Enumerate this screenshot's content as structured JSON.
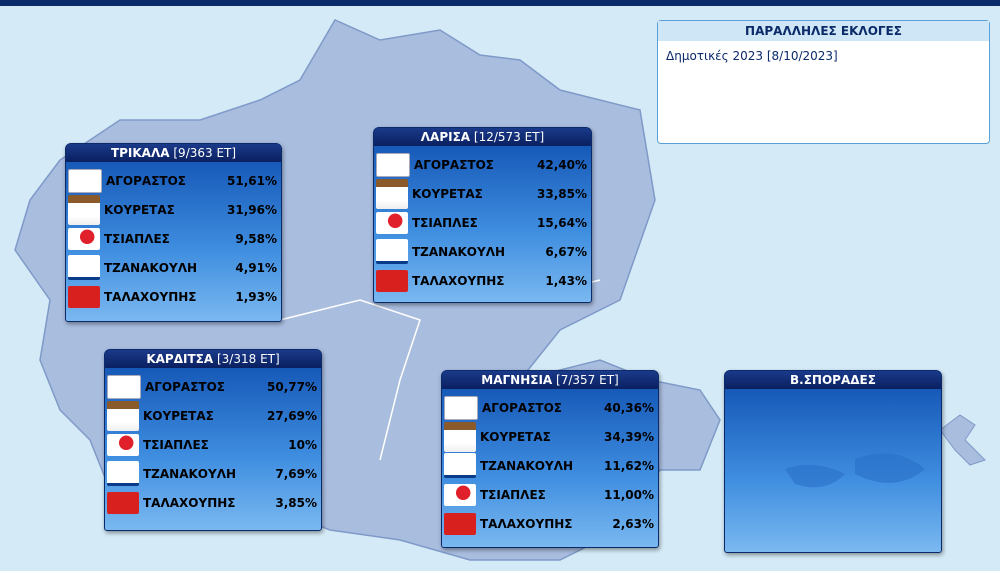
{
  "info_box": {
    "title": "ΠΑΡΑΛΛΗΛΕΣ ΕΚΛΟΓΕΣ",
    "text": "Δημοτικές 2023 [8/10/2023]"
  },
  "regions": [
    {
      "name": "ΤΡΙΚΑΛΑ",
      "counted": "[9/363 ΕΤ]",
      "results": [
        {
          "candidate": "ΑΓΟΡΑΣΤΟΣ",
          "percent": "51,61%"
        },
        {
          "candidate": "ΚΟΥΡΕΤΑΣ",
          "percent": "31,96%"
        },
        {
          "candidate": "ΤΣΙΑΠΛΕΣ",
          "percent": "9,58%"
        },
        {
          "candidate": "ΤΖΑΝΑΚΟΥΛΗ",
          "percent": "4,91%"
        },
        {
          "candidate": "ΤΑΛΑΧΟΥΠΗΣ",
          "percent": "1,93%"
        }
      ]
    },
    {
      "name": "ΛΑΡΙΣΑ",
      "counted": "[12/573 ΕΤ]",
      "results": [
        {
          "candidate": "ΑΓΟΡΑΣΤΟΣ",
          "percent": "42,40%"
        },
        {
          "candidate": "ΚΟΥΡΕΤΑΣ",
          "percent": "33,85%"
        },
        {
          "candidate": "ΤΣΙΑΠΛΕΣ",
          "percent": "15,64%"
        },
        {
          "candidate": "ΤΖΑΝΑΚΟΥΛΗ",
          "percent": "6,67%"
        },
        {
          "candidate": "ΤΑΛΑΧΟΥΠΗΣ",
          "percent": "1,43%"
        }
      ]
    },
    {
      "name": "ΚΑΡΔΙΤΣΑ",
      "counted": "[3/318 ΕΤ]",
      "results": [
        {
          "candidate": "ΑΓΟΡΑΣΤΟΣ",
          "percent": "50,77%"
        },
        {
          "candidate": "ΚΟΥΡΕΤΑΣ",
          "percent": "27,69%"
        },
        {
          "candidate": "ΤΣΙΑΠΛΕΣ",
          "percent": "10%"
        },
        {
          "candidate": "ΤΖΑΝΑΚΟΥΛΗ",
          "percent": "7,69%"
        },
        {
          "candidate": "ΤΑΛΑΧΟΥΠΗΣ",
          "percent": "3,85%"
        }
      ]
    },
    {
      "name": "ΜΑΓΝΗΣΙΑ",
      "counted": "[7/357 ΕΤ]",
      "results": [
        {
          "candidate": "ΑΓΟΡΑΣΤΟΣ",
          "percent": "40,36%"
        },
        {
          "candidate": "ΚΟΥΡΕΤΑΣ",
          "percent": "34,39%"
        },
        {
          "candidate": "ΤΖΑΝΑΚΟΥΛΗ",
          "percent": "11,62%"
        },
        {
          "candidate": "ΤΣΙΑΠΛΕΣ",
          "percent": "11,00%"
        },
        {
          "candidate": "ΤΑΛΑΧΟΥΠΗΣ",
          "percent": "2,63%"
        }
      ]
    },
    {
      "name": "Β.ΣΠΟΡΑΔΕΣ"
    }
  ]
}
